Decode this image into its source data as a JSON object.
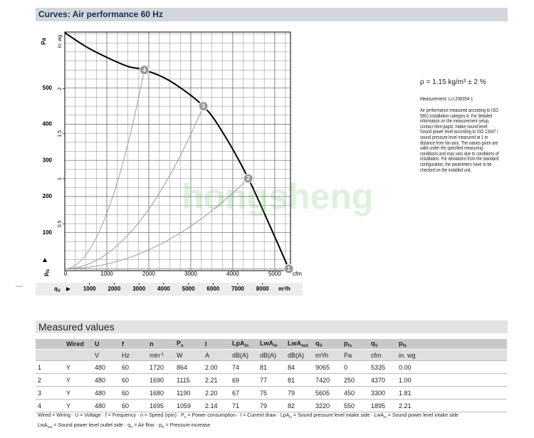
{
  "header": {
    "title": "Curves: Air performance 60 Hz"
  },
  "chart_data": {
    "type": "line",
    "y_label": "Pa",
    "y2_label": "in. wg",
    "x_label": "cfm",
    "x2_label": "m³/h",
    "y_symbol": {
      "text": "p",
      "sub": "fs"
    },
    "x2_symbol": {
      "text": "q",
      "sub": "V"
    },
    "xlim": [
      0,
      5375
    ],
    "xticks": [
      0,
      1000,
      2000,
      3000,
      4000,
      5000
    ],
    "x2lim": [
      0,
      9132
    ],
    "x2ticks": [
      1000,
      2000,
      3000,
      4000,
      5000,
      6000,
      7000,
      8000
    ],
    "ylim": [
      -5,
      655
    ],
    "yticks": [
      100,
      200,
      300,
      400,
      500
    ],
    "y2lim": [
      -0.02,
      2.63
    ],
    "y2ticks": [
      0.5,
      1,
      1.5,
      2
    ],
    "grid": true,
    "series": [
      {
        "color": "#000000",
        "x": [
          0,
          500,
          1000,
          1500,
          1895,
          2500,
          3300,
          3800,
          4370,
          4900,
          5335
        ],
        "values": [
          653,
          615,
          585,
          560,
          550,
          520,
          450,
          370,
          250,
          115,
          0
        ]
      }
    ],
    "operating_points": {
      "color": "#999999",
      "labels": [
        "1",
        "2",
        "3",
        "4"
      ],
      "x": [
        5335,
        4370,
        3300,
        1895
      ],
      "values": [
        0,
        250,
        450,
        550
      ]
    }
  },
  "watermark": "hongsheng",
  "notes": {
    "density": "ρ = 1.15 kg/m³ ± 2 %",
    "measurement": "Measurement: LU-208354-1",
    "description": [
      "Air performance measured according to ISO",
      "5801 installation category A. For detailed",
      "information on the measurement setup,",
      "contact ebm-papst. Intake sound level:",
      "Sound power level according to ISO 13347 /",
      "sound pressure level measured at 1 m",
      "distance from fan axis. The values given are",
      "valid under the specified measuring",
      "conditions and may vary due to conditions of",
      "installation. For deviations from the standard",
      "configuration, the parameters have to be",
      "checked on the installed unit."
    ]
  },
  "measured": {
    "title": "Measured values",
    "columns": [
      {
        "text": "Wired"
      },
      {
        "text": "U"
      },
      {
        "text": "f"
      },
      {
        "text": "n"
      },
      {
        "text": "P",
        "sub": "e"
      },
      {
        "text": "I"
      },
      {
        "text": "LpA",
        "sub": "in"
      },
      {
        "text": "LwA",
        "sub": "in"
      },
      {
        "text": "LwA",
        "sub": "out"
      },
      {
        "text": "q",
        "sub": "V"
      },
      {
        "text": "p",
        "sub": "fs"
      },
      {
        "text": "q",
        "sub": "V"
      },
      {
        "text": "p",
        "sub": "fs"
      }
    ],
    "units": [
      null,
      "V",
      "Hz",
      {
        "text": "min",
        "sup": "-1"
      },
      "W",
      "A",
      "dB(A)",
      "dB(A)",
      "dB(A)",
      "m³/h",
      "Pa",
      "cfm",
      "in. wg"
    ],
    "rows": [
      [
        "1",
        "Y",
        "480",
        "60",
        "1720",
        "864",
        "2.00",
        "74",
        "81",
        "84",
        "9065",
        "0",
        "5335",
        "0.00"
      ],
      [
        "2",
        "Y",
        "480",
        "60",
        "1690",
        "1115",
        "2.21",
        "69",
        "77",
        "81",
        "7420",
        "250",
        "4370",
        "1.00"
      ],
      [
        "3",
        "Y",
        "480",
        "60",
        "1680",
        "1190",
        "2.20",
        "67",
        "75",
        "79",
        "5605",
        "450",
        "3300",
        "1.81"
      ],
      [
        "4",
        "Y",
        "480",
        "60",
        "1695",
        "1059",
        "2.14",
        "71",
        "79",
        "82",
        "3220",
        "550",
        "1895",
        "2.21"
      ]
    ]
  },
  "footnote": [
    [
      "Wired = Wiring · U = Voltage · f = Frequency · n = Speed (rpm) · P",
      "e",
      " = Power consumption · I = Current draw · LpA",
      "in",
      " = Sound pressure level intake side · LwA",
      "in",
      " = Sound power level intake side"
    ],
    [
      "LwA",
      "out",
      " = Sound power level outlet side · q",
      "V",
      " = Air flow · p",
      "fs",
      " = Pressure increase"
    ]
  ]
}
